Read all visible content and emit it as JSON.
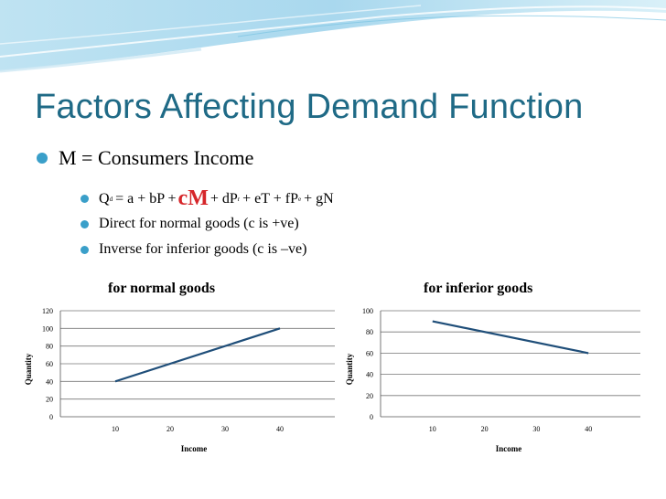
{
  "slide": {
    "title": "Factors Affecting Demand Function",
    "bullet_main": "M = Consumers Income",
    "equation": {
      "pre": "Q",
      "pre_sub": "d",
      "mid": "= a + bP +",
      "highlight": "cM",
      "post1": "+ dP",
      "post1_sub": "r",
      "post2": "+ eT + fP",
      "post2_sub": "e",
      "post3": "+ gN"
    },
    "bullet_direct": "Direct for normal goods  (c is +ve)",
    "bullet_inverse": "Inverse for inferior goods (c is –ve)"
  },
  "colors": {
    "title": "#1f6a86",
    "bullet": "#3a9fc9",
    "highlight": "#d6262a",
    "line": "#1f4e79"
  },
  "chart_data": [
    {
      "type": "line",
      "title": "for normal goods",
      "xlabel": "Income",
      "ylabel": "Quantity",
      "x": [
        10,
        40
      ],
      "series": [
        {
          "values": [
            40,
            100
          ]
        }
      ],
      "xticks": [
        "10",
        "20",
        "30",
        "40"
      ],
      "yticks": [
        "0",
        "20",
        "40",
        "60",
        "80",
        "100",
        "120"
      ],
      "xlim": [
        0,
        50
      ],
      "ylim": [
        0,
        120
      ],
      "grid": "horizontal"
    },
    {
      "type": "line",
      "title": "for inferior goods",
      "xlabel": "Income",
      "ylabel": "Quantity",
      "x": [
        10,
        40
      ],
      "series": [
        {
          "values": [
            90,
            60
          ]
        }
      ],
      "xticks": [
        "10",
        "20",
        "30",
        "40"
      ],
      "yticks": [
        "0",
        "20",
        "40",
        "60",
        "80",
        "100"
      ],
      "xlim": [
        0,
        50
      ],
      "ylim": [
        0,
        100
      ],
      "grid": "horizontal"
    }
  ]
}
